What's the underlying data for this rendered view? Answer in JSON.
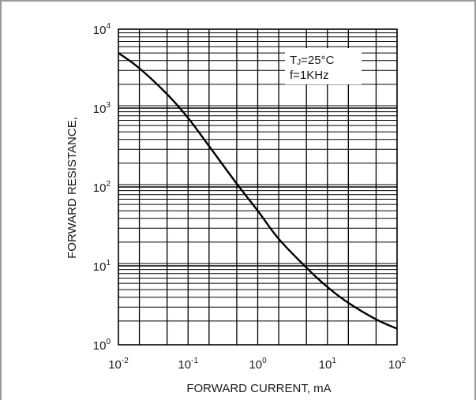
{
  "chart_data": {
    "type": "line",
    "xlabel": "FORWARD CURRENT, mA",
    "ylabel": "FORWARD RESISTANCE,",
    "x_scale": "log",
    "y_scale": "log",
    "xlim": [
      0.01,
      100
    ],
    "ylim": [
      1,
      10000
    ],
    "x_ticks": [
      {
        "base": "10",
        "exp": "-2"
      },
      {
        "base": "10",
        "exp": "-1"
      },
      {
        "base": "10",
        "exp": "0"
      },
      {
        "base": "10",
        "exp": "1"
      },
      {
        "base": "10",
        "exp": "2"
      }
    ],
    "y_ticks": [
      {
        "base": "10",
        "exp": "0"
      },
      {
        "base": "10",
        "exp": "1"
      },
      {
        "base": "10",
        "exp": "2"
      },
      {
        "base": "10",
        "exp": "3"
      },
      {
        "base": "10",
        "exp": "4"
      }
    ],
    "grid": true,
    "annotation": {
      "line1": "T",
      "line1_sub": "J",
      "line1_rest": "=25°C",
      "line2": "f=1KHz"
    },
    "series": [
      {
        "x": [
          0.01,
          0.02,
          0.05,
          0.1,
          0.2,
          0.5,
          1,
          2,
          5,
          10,
          20,
          50,
          100
        ],
        "y": [
          5000,
          3200,
          1500,
          750,
          330,
          110,
          50,
          22,
          9.5,
          5.4,
          3.4,
          2.1,
          1.6
        ]
      }
    ]
  }
}
